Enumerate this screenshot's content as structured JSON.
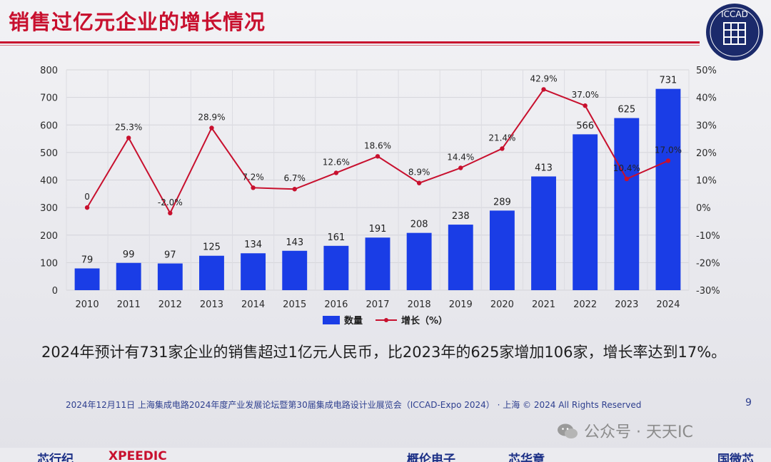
{
  "slide": {
    "title": "销售过亿元企业的增长情况",
    "logo_text": "ICCAD",
    "body_text": "2024年预计有731家企业的销售超过1亿元人民币，比2023年的625家增加106家，增长率达到17%。",
    "footer": "2024年12月11日 上海集成电路2024年度产业发展论坛暨第30届集成电路设计业展览会（ICCAD-Expo 2024） · 上海 © 2024 All Rights Reserved",
    "page_number": "9",
    "watermark": "公众号 · 天天IC",
    "sponsors": [
      "芯行纪",
      "XPEEDIC",
      "",
      "",
      "",
      "概伦电子",
      "芯华章",
      "",
      "",
      "国微芯"
    ]
  },
  "colors": {
    "title": "#c8102e",
    "bar": "#1a3de6",
    "line": "#c8102e",
    "footer": "#2e3f8f"
  },
  "chart_data": {
    "type": "bar",
    "categories": [
      "2010",
      "2011",
      "2012",
      "2013",
      "2014",
      "2015",
      "2016",
      "2017",
      "2018",
      "2019",
      "2020",
      "2021",
      "2022",
      "2023",
      "2024"
    ],
    "series": [
      {
        "name": "数量",
        "type": "bar",
        "axis": "left",
        "values": [
          79,
          99,
          97,
          125,
          134,
          143,
          161,
          191,
          208,
          238,
          289,
          413,
          566,
          625,
          731
        ]
      },
      {
        "name": "增长（%）",
        "type": "line",
        "axis": "right",
        "values": [
          0,
          25.3,
          -2.0,
          28.9,
          7.2,
          6.7,
          12.6,
          18.6,
          8.9,
          14.4,
          21.4,
          42.9,
          37.0,
          10.4,
          17.0
        ],
        "labels": [
          "0",
          "25.3%",
          "-2.0%",
          "28.9%",
          "7.2%",
          "6.7%",
          "12.6%",
          "18.6%",
          "8.9%",
          "14.4%",
          "21.4%",
          "42.9%",
          "37.0%",
          "10.4%",
          "17.0%"
        ]
      }
    ],
    "ylim_left": [
      0,
      800
    ],
    "yticks_left": [
      "0",
      "100",
      "200",
      "300",
      "400",
      "500",
      "600",
      "700",
      "800"
    ],
    "ylim_right": [
      -30,
      50
    ],
    "yticks_right": [
      "-30%",
      "-20%",
      "-10%",
      "0%",
      "10%",
      "20%",
      "30%",
      "40%",
      "50%"
    ],
    "grid": true,
    "legend_position": "bottom"
  }
}
